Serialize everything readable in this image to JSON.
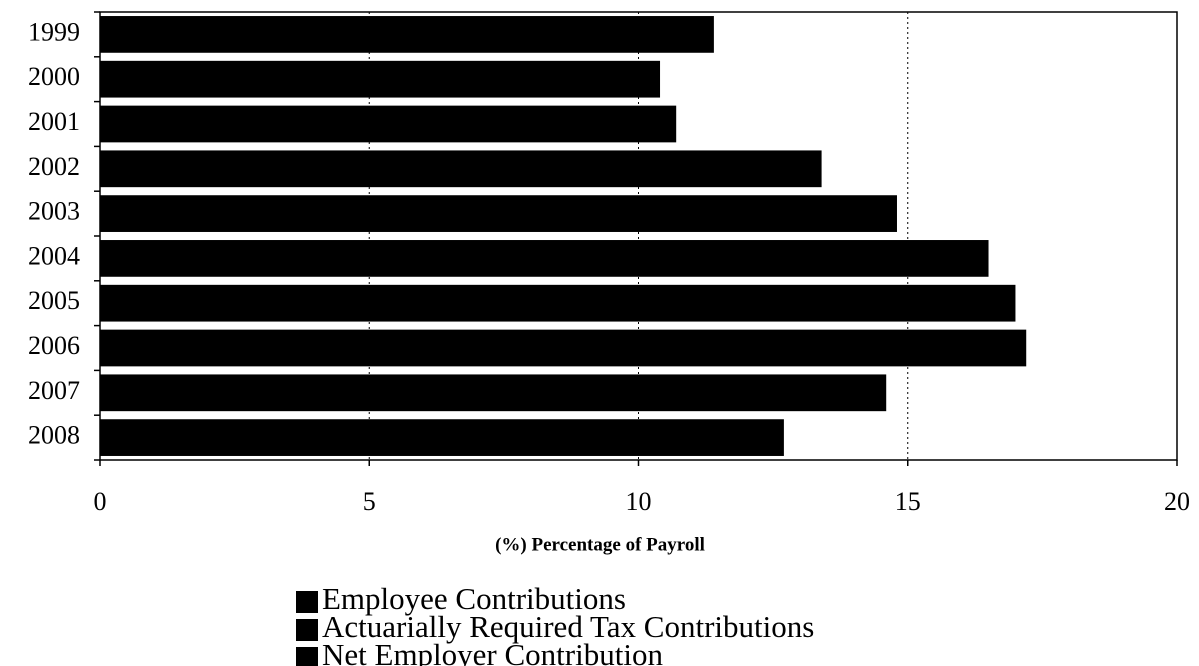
{
  "chart_data": {
    "type": "barh",
    "xlabel": "(%) Percentage of Payroll",
    "categories": [
      "1999",
      "2000",
      "2001",
      "2002",
      "2003",
      "2004",
      "2005",
      "2006",
      "2007",
      "2008"
    ],
    "values": [
      11.4,
      10.4,
      10.7,
      13.4,
      14.8,
      16.5,
      17.0,
      17.2,
      14.6,
      12.7
    ],
    "color": "#000000",
    "xlim": [
      0,
      20
    ],
    "xticks": [
      0,
      5,
      10,
      15,
      20
    ],
    "grid": true,
    "legend": [
      {
        "name": "Employee Contributions",
        "color": "#000000"
      },
      {
        "name": "Actuarially Required Tax Contributions",
        "color": "#000000"
      },
      {
        "name": "Net Employer Contribution",
        "color": "#000000"
      }
    ]
  }
}
